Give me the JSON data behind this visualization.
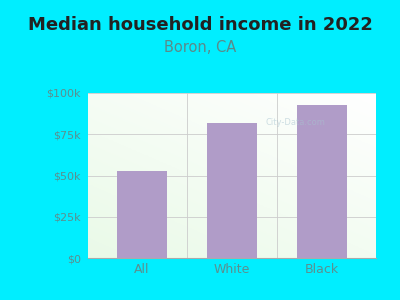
{
  "title": "Median household income in 2022",
  "subtitle": "Boron, CA",
  "categories": [
    "All",
    "White",
    "Black"
  ],
  "values": [
    53000,
    82000,
    93000
  ],
  "bar_color": "#b09cc8",
  "background_color": "#00eeff",
  "plot_bg_color_topleft": "#e8f5e0",
  "plot_bg_color_topright": "#f0f8ff",
  "plot_bg_color_bottom": "#ffffff",
  "title_fontsize": 13,
  "subtitle_fontsize": 10.5,
  "title_color": "#222222",
  "subtitle_color": "#5a8a8a",
  "tick_label_color": "#5a9090",
  "ylim": [
    0,
    100000
  ],
  "yticks": [
    0,
    25000,
    50000,
    75000,
    100000
  ],
  "ytick_labels": [
    "$0",
    "$25k",
    "$50k",
    "$75k",
    "$100k"
  ],
  "watermark_text": "City-Data.com",
  "watermark_color": "#a8c4d0",
  "watermark_alpha": 0.55
}
